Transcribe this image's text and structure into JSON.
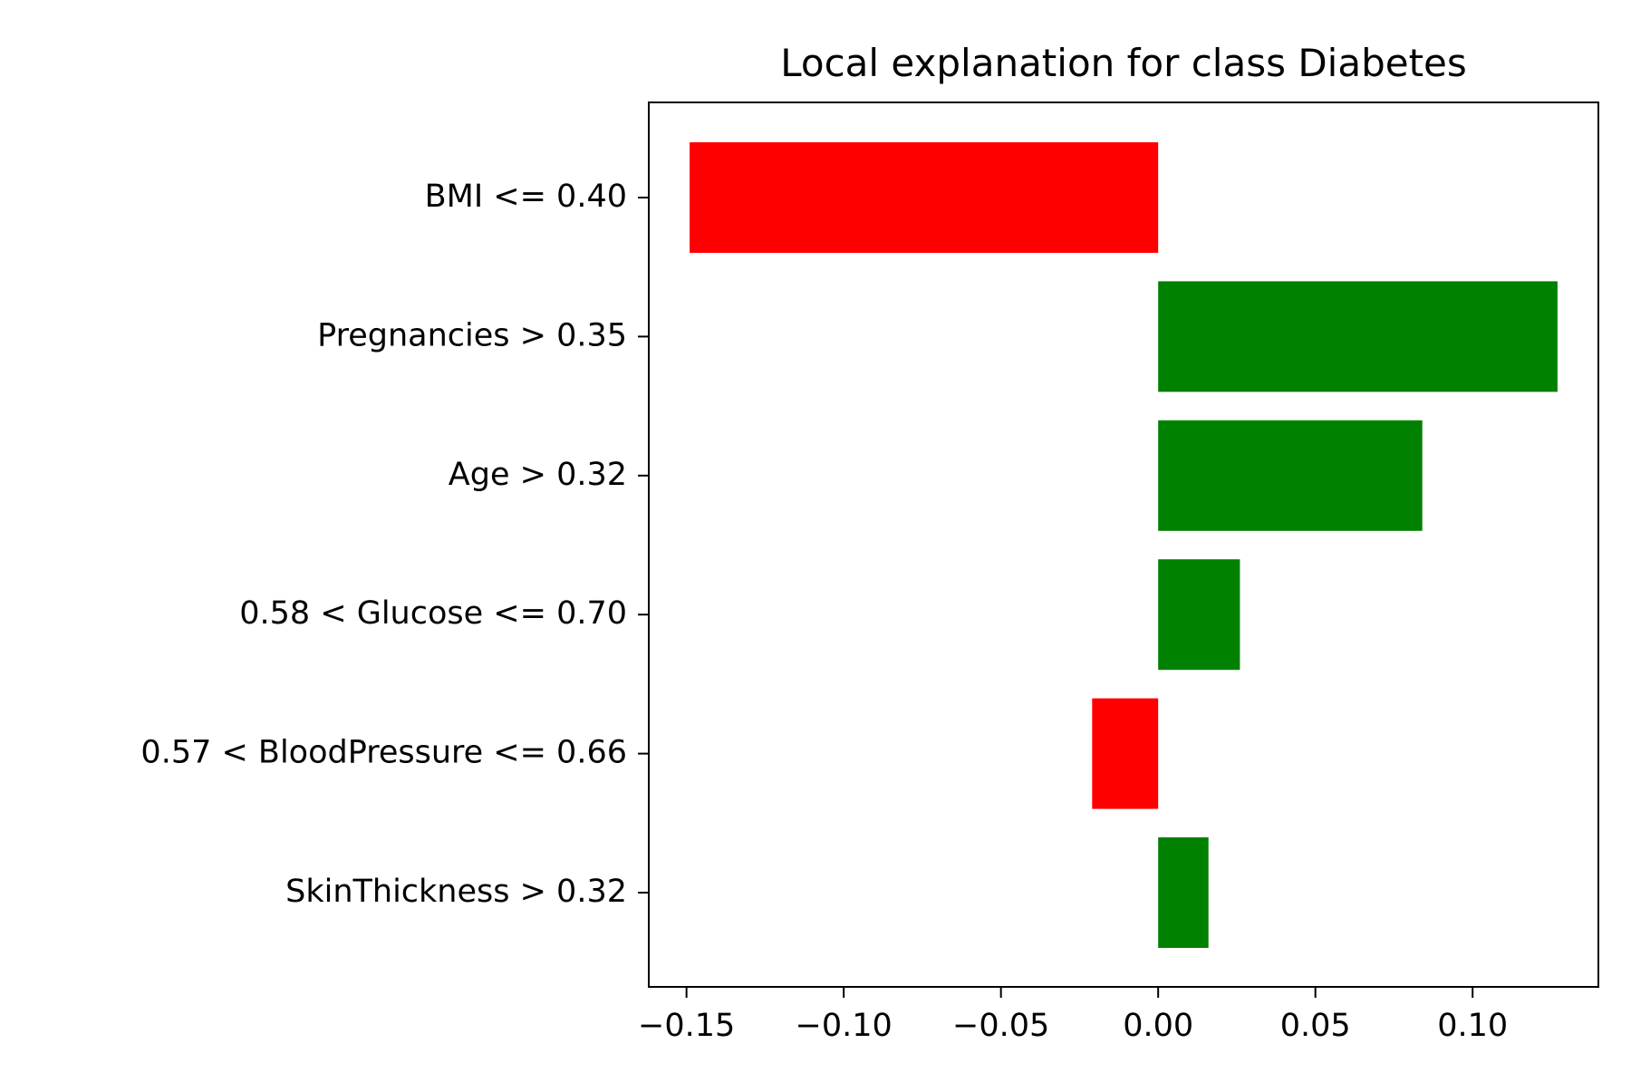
{
  "chart_data": {
    "type": "bar",
    "orientation": "horizontal",
    "title": "Local explanation for class Diabetes",
    "xlabel": "",
    "ylabel": "",
    "categories": [
      "BMI <= 0.40",
      "Pregnancies > 0.35",
      "Age > 0.32",
      "0.58 < Glucose <= 0.70",
      "0.57 < BloodPressure <= 0.66",
      "SkinThickness > 0.32"
    ],
    "values": [
      -0.149,
      0.127,
      0.084,
      0.026,
      -0.021,
      0.016
    ],
    "bar_colors": [
      "#ff0000",
      "#008000",
      "#008000",
      "#008000",
      "#ff0000",
      "#008000"
    ],
    "xlim": [
      -0.162,
      0.14
    ],
    "xticks": [
      -0.15,
      -0.1,
      -0.05,
      0.0,
      0.05,
      0.1
    ],
    "xtick_labels": [
      "−0.15",
      "−0.10",
      "−0.05",
      "0.00",
      "0.05",
      "0.10"
    ],
    "grid": false,
    "legend": "none",
    "colors": {
      "positive": "#008000",
      "negative": "#ff0000",
      "axis": "#000000"
    }
  }
}
